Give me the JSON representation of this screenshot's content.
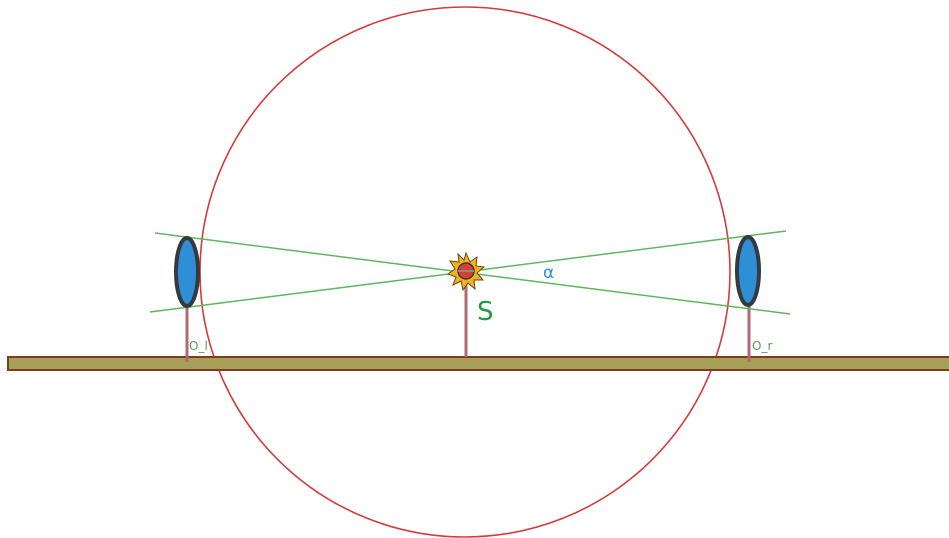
{
  "labels": {
    "source": "S",
    "angle": "α",
    "left_lens_base": "O_l",
    "right_lens_base": "O_r"
  },
  "colors": {
    "circle": "#d63a3a",
    "rays": "#5cb85c",
    "rail_fill": "#a8a05a",
    "rail_border": "#7a3e1a",
    "stand": "#b06a70",
    "lens_fill": "#2e8fd6",
    "lens_rim": "#333a40",
    "source_label": "#1f9a3c",
    "angle_label": "#2a8fd6",
    "base_label": "#5a9a5a",
    "sun_rays": "#f2b21c",
    "sun_core": "#d94030"
  },
  "icons": {
    "source": "sun-icon",
    "lens": "lens-icon"
  }
}
